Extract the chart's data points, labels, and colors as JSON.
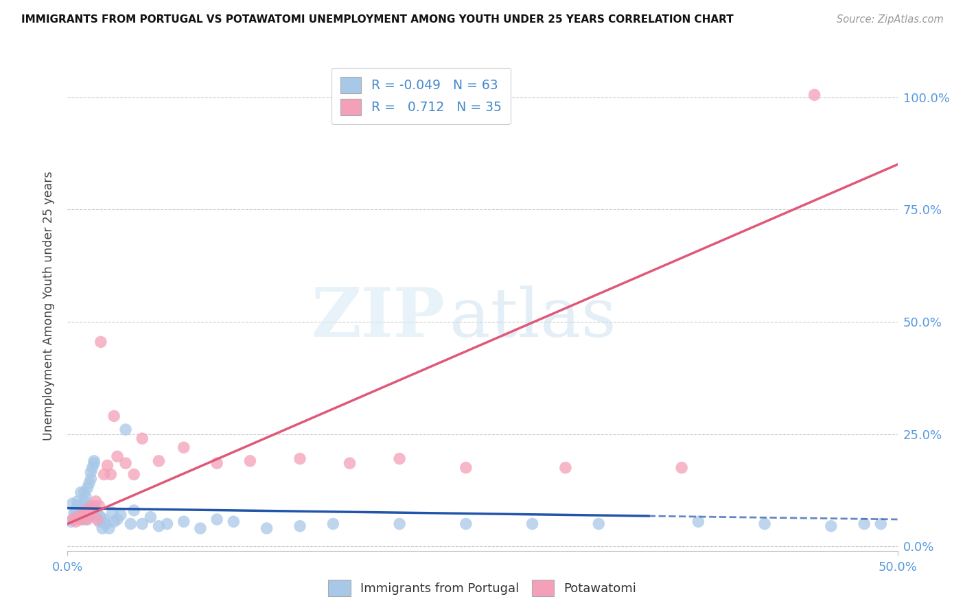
{
  "title": "IMMIGRANTS FROM PORTUGAL VS POTAWATOMI UNEMPLOYMENT AMONG YOUTH UNDER 25 YEARS CORRELATION CHART",
  "source": "Source: ZipAtlas.com",
  "ylabel": "Unemployment Among Youth under 25 years",
  "xlim": [
    0.0,
    0.5
  ],
  "ylim": [
    -0.01,
    1.08
  ],
  "ytick_labels": [
    "0.0%",
    "25.0%",
    "50.0%",
    "75.0%",
    "100.0%"
  ],
  "ytick_values": [
    0.0,
    0.25,
    0.5,
    0.75,
    1.0
  ],
  "xtick_labels": [
    "0.0%",
    "50.0%"
  ],
  "xtick_values": [
    0.0,
    0.5
  ],
  "blue_R": "-0.049",
  "blue_N": "63",
  "pink_R": "0.712",
  "pink_N": "35",
  "blue_color": "#a8c8e8",
  "pink_color": "#f4a0b8",
  "blue_line_color": "#2255aa",
  "pink_line_color": "#e05878",
  "legend_label_blue": "Immigrants from Portugal",
  "legend_label_pink": "Potawatomi",
  "background_color": "#ffffff",
  "blue_scatter_x": [
    0.002,
    0.003,
    0.004,
    0.004,
    0.005,
    0.005,
    0.006,
    0.006,
    0.007,
    0.007,
    0.008,
    0.008,
    0.009,
    0.009,
    0.01,
    0.01,
    0.011,
    0.011,
    0.012,
    0.012,
    0.013,
    0.013,
    0.014,
    0.014,
    0.015,
    0.015,
    0.016,
    0.016,
    0.017,
    0.018,
    0.019,
    0.02,
    0.021,
    0.022,
    0.023,
    0.025,
    0.027,
    0.028,
    0.03,
    0.032,
    0.035,
    0.038,
    0.04,
    0.045,
    0.05,
    0.055,
    0.06,
    0.07,
    0.08,
    0.09,
    0.1,
    0.12,
    0.14,
    0.16,
    0.2,
    0.24,
    0.28,
    0.32,
    0.38,
    0.42,
    0.46,
    0.48,
    0.49
  ],
  "blue_scatter_y": [
    0.055,
    0.095,
    0.06,
    0.075,
    0.08,
    0.065,
    0.09,
    0.1,
    0.07,
    0.085,
    0.07,
    0.12,
    0.06,
    0.085,
    0.1,
    0.12,
    0.06,
    0.11,
    0.13,
    0.065,
    0.09,
    0.14,
    0.15,
    0.165,
    0.175,
    0.07,
    0.185,
    0.19,
    0.08,
    0.075,
    0.055,
    0.065,
    0.04,
    0.06,
    0.05,
    0.04,
    0.075,
    0.055,
    0.06,
    0.07,
    0.26,
    0.05,
    0.08,
    0.05,
    0.065,
    0.045,
    0.05,
    0.055,
    0.04,
    0.06,
    0.055,
    0.04,
    0.045,
    0.05,
    0.05,
    0.05,
    0.05,
    0.05,
    0.055,
    0.05,
    0.045,
    0.05,
    0.05
  ],
  "pink_scatter_x": [
    0.003,
    0.005,
    0.006,
    0.008,
    0.009,
    0.01,
    0.011,
    0.012,
    0.013,
    0.014,
    0.015,
    0.016,
    0.017,
    0.018,
    0.019,
    0.02,
    0.022,
    0.024,
    0.026,
    0.028,
    0.03,
    0.035,
    0.04,
    0.045,
    0.055,
    0.07,
    0.09,
    0.11,
    0.14,
    0.17,
    0.2,
    0.24,
    0.3,
    0.37,
    0.45
  ],
  "pink_scatter_y": [
    0.06,
    0.055,
    0.065,
    0.06,
    0.07,
    0.075,
    0.08,
    0.06,
    0.085,
    0.07,
    0.08,
    0.09,
    0.1,
    0.06,
    0.09,
    0.455,
    0.16,
    0.18,
    0.16,
    0.29,
    0.2,
    0.185,
    0.16,
    0.24,
    0.19,
    0.22,
    0.185,
    0.19,
    0.195,
    0.185,
    0.195,
    0.175,
    0.175,
    0.175,
    1.005
  ],
  "pink_line_slope": 1.6,
  "pink_line_intercept": 0.05,
  "blue_line_slope": -0.05,
  "blue_line_intercept": 0.085
}
